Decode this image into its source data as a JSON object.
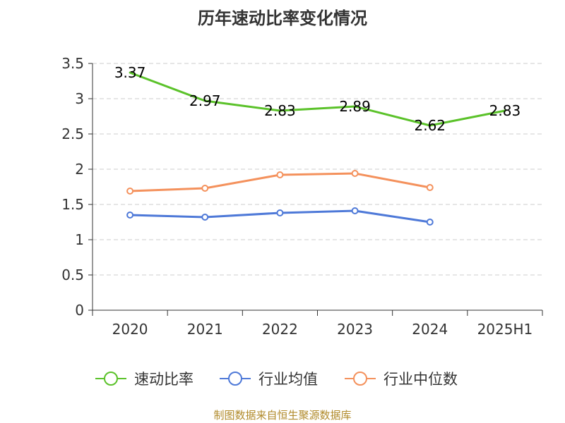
{
  "title": "历年速动比率变化情况",
  "source": "制图数据来自恒生聚源数据库",
  "colors": {
    "speed_ratio": "#5bc22a",
    "industry_mean": "#4e79d8",
    "industry_median": "#f4915c",
    "axis": "#333333",
    "grid": "#cccccc"
  },
  "chart_data": {
    "type": "line",
    "categories": [
      "2020",
      "2021",
      "2022",
      "2023",
      "2024",
      "2025H1"
    ],
    "ylim": [
      0,
      3.5
    ],
    "yticks": [
      "0",
      "0.5",
      "1",
      "1.5",
      "2",
      "2.5",
      "3",
      "3.5"
    ],
    "grid": true,
    "legend_position": "bottom",
    "series": [
      {
        "name": "速动比率",
        "values": [
          3.37,
          2.97,
          2.83,
          2.89,
          2.62,
          2.83
        ],
        "labels": [
          "3.37",
          "2.97",
          "2.83",
          "2.89",
          "2.62",
          "2.83"
        ],
        "color": "#5bc22a",
        "markers": false
      },
      {
        "name": "行业均值",
        "values": [
          1.35,
          1.32,
          1.38,
          1.41,
          1.25,
          null
        ],
        "color": "#4e79d8",
        "markers": true
      },
      {
        "name": "行业中位数",
        "values": [
          1.69,
          1.73,
          1.92,
          1.94,
          1.74,
          null
        ],
        "color": "#f4915c",
        "markers": true
      }
    ]
  }
}
